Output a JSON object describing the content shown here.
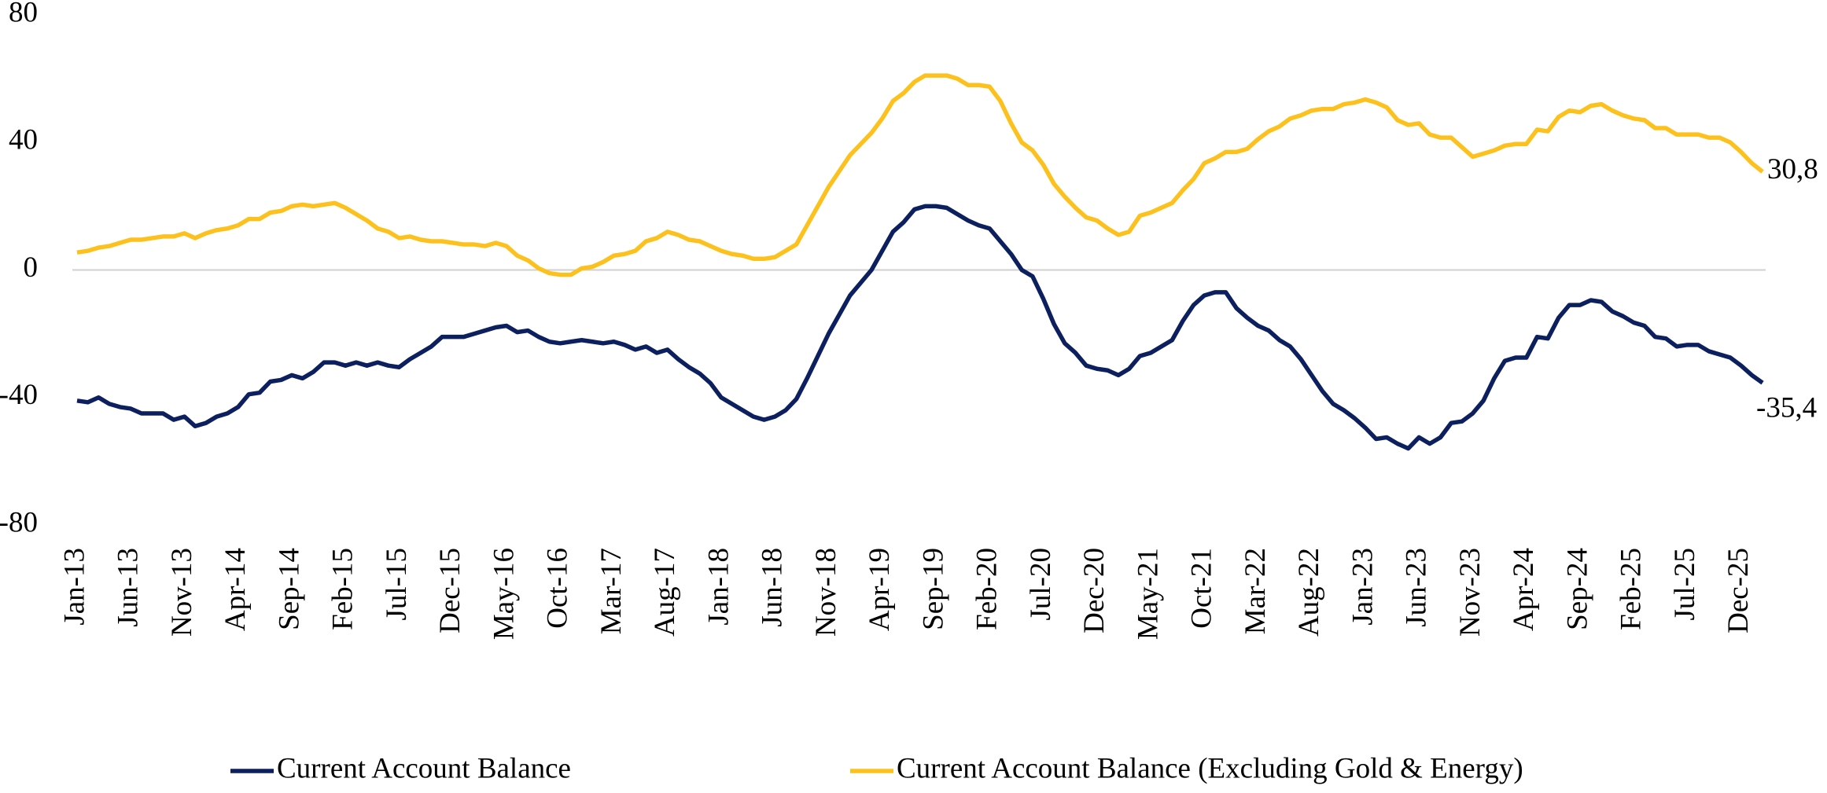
{
  "chart_data": {
    "type": "line",
    "categories": [
      "Jan-13",
      null,
      null,
      null,
      null,
      "Jun-13",
      null,
      null,
      null,
      null,
      "Nov-13",
      null,
      null,
      null,
      null,
      "Apr-14",
      null,
      null,
      null,
      null,
      "Sep-14",
      null,
      null,
      null,
      null,
      "Feb-15",
      null,
      null,
      null,
      null,
      "Jul-15",
      null,
      null,
      null,
      null,
      "Dec-15",
      null,
      null,
      null,
      null,
      "May-16",
      null,
      null,
      null,
      null,
      "Oct-16",
      null,
      null,
      null,
      null,
      "Mar-17",
      null,
      null,
      null,
      null,
      "Aug-17",
      null,
      null,
      null,
      null,
      "Jan-18",
      null,
      null,
      null,
      null,
      "Jun-18",
      null,
      null,
      null,
      null,
      "Nov-18",
      null,
      null,
      null,
      null,
      "Apr-19",
      null,
      null,
      null,
      null,
      "Sep-19",
      null,
      null,
      null,
      null,
      "Feb-20",
      null,
      null,
      null,
      null,
      "Jul-20",
      null,
      null,
      null,
      null,
      "Dec-20",
      null,
      null,
      null,
      null,
      "May-21",
      null,
      null,
      null,
      null,
      "Oct-21",
      null,
      null,
      null,
      null,
      "Mar-22",
      null,
      null,
      null,
      null,
      "Aug-22",
      null,
      null,
      null,
      null,
      "Jan-23",
      null,
      null,
      null,
      null,
      "Jun-23",
      null,
      null,
      null,
      null,
      "Nov-23",
      null,
      null,
      null,
      null,
      "Apr-24",
      null,
      null,
      null,
      null,
      "Sep-24",
      null,
      null,
      null,
      null,
      "Feb-25",
      null,
      null,
      null,
      null,
      "Jul-25",
      null,
      null,
      null,
      null,
      "Dec-25",
      null,
      null
    ],
    "series": [
      {
        "name": "Current Account Balance",
        "color": "#0c1f5e",
        "values": [
          -41,
          -41.5,
          -40,
          -42,
          -43,
          -43.5,
          -45,
          -45,
          -45,
          -47,
          -46,
          -49,
          -48,
          -46,
          -45,
          -43,
          -39,
          -38.5,
          -35,
          -34.5,
          -33,
          -34,
          -32,
          -29,
          -29,
          -30,
          -29,
          -30,
          -29,
          -30,
          -30.5,
          -28,
          -26,
          -24,
          -21,
          -21,
          -21,
          -20,
          -19,
          -18,
          -17.5,
          -19.5,
          -19,
          -21,
          -22.5,
          -23,
          -22.5,
          -22,
          -22.5,
          -23,
          -22.5,
          -23.5,
          -25,
          -24,
          -26,
          -25,
          -28,
          -30.5,
          -32.5,
          -35.5,
          -40,
          -42,
          -44,
          -46,
          -47,
          -46,
          -44,
          -40.5,
          -34,
          -27,
          -20,
          -14,
          -8,
          -4,
          0,
          6,
          12,
          15,
          19,
          20,
          20,
          19.5,
          17.5,
          15.5,
          14,
          13,
          9,
          5,
          0,
          -2,
          -9,
          -17,
          -23,
          -26,
          -30,
          -31,
          -31.5,
          -33,
          -31,
          -27,
          -26,
          -24,
          -22,
          -16,
          -11,
          -8,
          -7,
          -7,
          -12,
          -15,
          -17.5,
          -19,
          -22,
          -24,
          -28,
          -33,
          -38,
          -42,
          -44,
          -46.5,
          -49.5,
          -53,
          -52.5,
          -54.5,
          -56,
          -52.5,
          -54.5,
          -52.5,
          -48,
          -47.5,
          -45,
          -41,
          -34,
          -28.5,
          -27.5,
          -27.5,
          -21,
          -21.5,
          -15,
          -11,
          -11,
          -9.5,
          -10,
          -13,
          -14.5,
          -16.5,
          -17.5,
          -21,
          -21.5,
          -24,
          -23.5,
          -23.5,
          -25.5,
          -26.5,
          -27.5,
          -30,
          -33,
          -35.4
        ],
        "value_labels": [
          null,
          null,
          null,
          null,
          null,
          null,
          null,
          null,
          null,
          null,
          null,
          null,
          null,
          null,
          null,
          null,
          null,
          null,
          null,
          null,
          null,
          null,
          null,
          null,
          null,
          null,
          null,
          null,
          null,
          null,
          null,
          null,
          null,
          null,
          null,
          null,
          null,
          null,
          null,
          null,
          null,
          null,
          null,
          null,
          null,
          null,
          null,
          null,
          null,
          null,
          null,
          null,
          null,
          null,
          null,
          null,
          null,
          null,
          null,
          null,
          null,
          null,
          null,
          null,
          null,
          null,
          null,
          null,
          null,
          null,
          null,
          null,
          null,
          null,
          null,
          null,
          null,
          null,
          null,
          null,
          null,
          null,
          null,
          null,
          null,
          null,
          null,
          null,
          null,
          null,
          null,
          null,
          null,
          null,
          null,
          null,
          null,
          null,
          null,
          null,
          null,
          null,
          null,
          null,
          null,
          null,
          null,
          null,
          null,
          null,
          null,
          null,
          null,
          null,
          null,
          null,
          null,
          null,
          null,
          null,
          null,
          null,
          null,
          null,
          null,
          null,
          null,
          null,
          null,
          null,
          null,
          null,
          null,
          null,
          null,
          null,
          null,
          null,
          null,
          null,
          null,
          null,
          null,
          null,
          null,
          null,
          null,
          null,
          null,
          null,
          null,
          null,
          null,
          null,
          null,
          null,
          null,
          "-35,4"
        ]
      },
      {
        "name": "Current Account Balance (Excluding Gold & Energy)",
        "color": "#fdc11e",
        "values": [
          5.5,
          6,
          7,
          7.5,
          8.5,
          9.5,
          9.5,
          10,
          10.5,
          10.5,
          11.5,
          10,
          11.5,
          12.5,
          13,
          14,
          16,
          16,
          18,
          18.5,
          20,
          20.5,
          20,
          20.5,
          21,
          19.5,
          17.5,
          15.5,
          13,
          12,
          10,
          10.5,
          9.5,
          9,
          9,
          8.5,
          8,
          8,
          7.5,
          8.5,
          7.5,
          4.5,
          3,
          0.5,
          -1,
          -1.5,
          -1.5,
          0.5,
          1,
          2.5,
          4.5,
          5,
          6,
          9,
          10,
          12,
          11,
          9.5,
          9,
          7.5,
          6,
          5,
          4.5,
          3.5,
          3.5,
          4,
          6,
          8,
          14,
          20,
          26,
          31,
          36,
          39.5,
          43,
          47.5,
          53,
          55.5,
          59,
          61,
          61,
          61,
          60,
          58,
          58,
          57.5,
          53,
          46,
          40,
          37.5,
          33,
          27,
          23,
          19.5,
          16.5,
          15.5,
          13,
          11,
          12,
          17,
          18,
          19.5,
          21,
          25,
          28.5,
          33.5,
          35,
          37,
          37,
          38,
          41,
          43.5,
          45,
          47.5,
          48.5,
          50,
          50.5,
          50.5,
          52,
          52.5,
          53.5,
          52.5,
          51,
          47,
          45.5,
          46,
          42.5,
          41.5,
          41.5,
          38.5,
          35.5,
          36.5,
          37.5,
          39,
          39.5,
          39.5,
          44,
          43.5,
          48,
          50,
          49.5,
          51.5,
          52,
          50,
          48.5,
          47.5,
          47,
          44.5,
          44.5,
          42.5,
          42.5,
          42.5,
          41.5,
          41.5,
          40,
          37,
          33.5,
          30.8
        ],
        "value_labels": [
          null,
          null,
          null,
          null,
          null,
          null,
          null,
          null,
          null,
          null,
          null,
          null,
          null,
          null,
          null,
          null,
          null,
          null,
          null,
          null,
          null,
          null,
          null,
          null,
          null,
          null,
          null,
          null,
          null,
          null,
          null,
          null,
          null,
          null,
          null,
          null,
          null,
          null,
          null,
          null,
          null,
          null,
          null,
          null,
          null,
          null,
          null,
          null,
          null,
          null,
          null,
          null,
          null,
          null,
          null,
          null,
          null,
          null,
          null,
          null,
          null,
          null,
          null,
          null,
          null,
          null,
          null,
          null,
          null,
          null,
          null,
          null,
          null,
          null,
          null,
          null,
          null,
          null,
          null,
          null,
          null,
          null,
          null,
          null,
          null,
          null,
          null,
          null,
          null,
          null,
          null,
          null,
          null,
          null,
          null,
          null,
          null,
          null,
          null,
          null,
          null,
          null,
          null,
          null,
          null,
          null,
          null,
          null,
          null,
          null,
          null,
          null,
          null,
          null,
          null,
          null,
          null,
          null,
          null,
          null,
          null,
          null,
          null,
          null,
          null,
          null,
          null,
          null,
          null,
          null,
          null,
          null,
          null,
          null,
          null,
          null,
          null,
          null,
          null,
          null,
          null,
          null,
          null,
          null,
          null,
          null,
          null,
          null,
          null,
          null,
          null,
          null,
          null,
          null,
          null,
          null,
          null,
          "30,8"
        ]
      }
    ],
    "ylim": [
      -80,
      80
    ],
    "yticks": [
      -80,
      -40,
      0,
      40,
      80
    ],
    "grid": false,
    "legend": "bottom"
  }
}
